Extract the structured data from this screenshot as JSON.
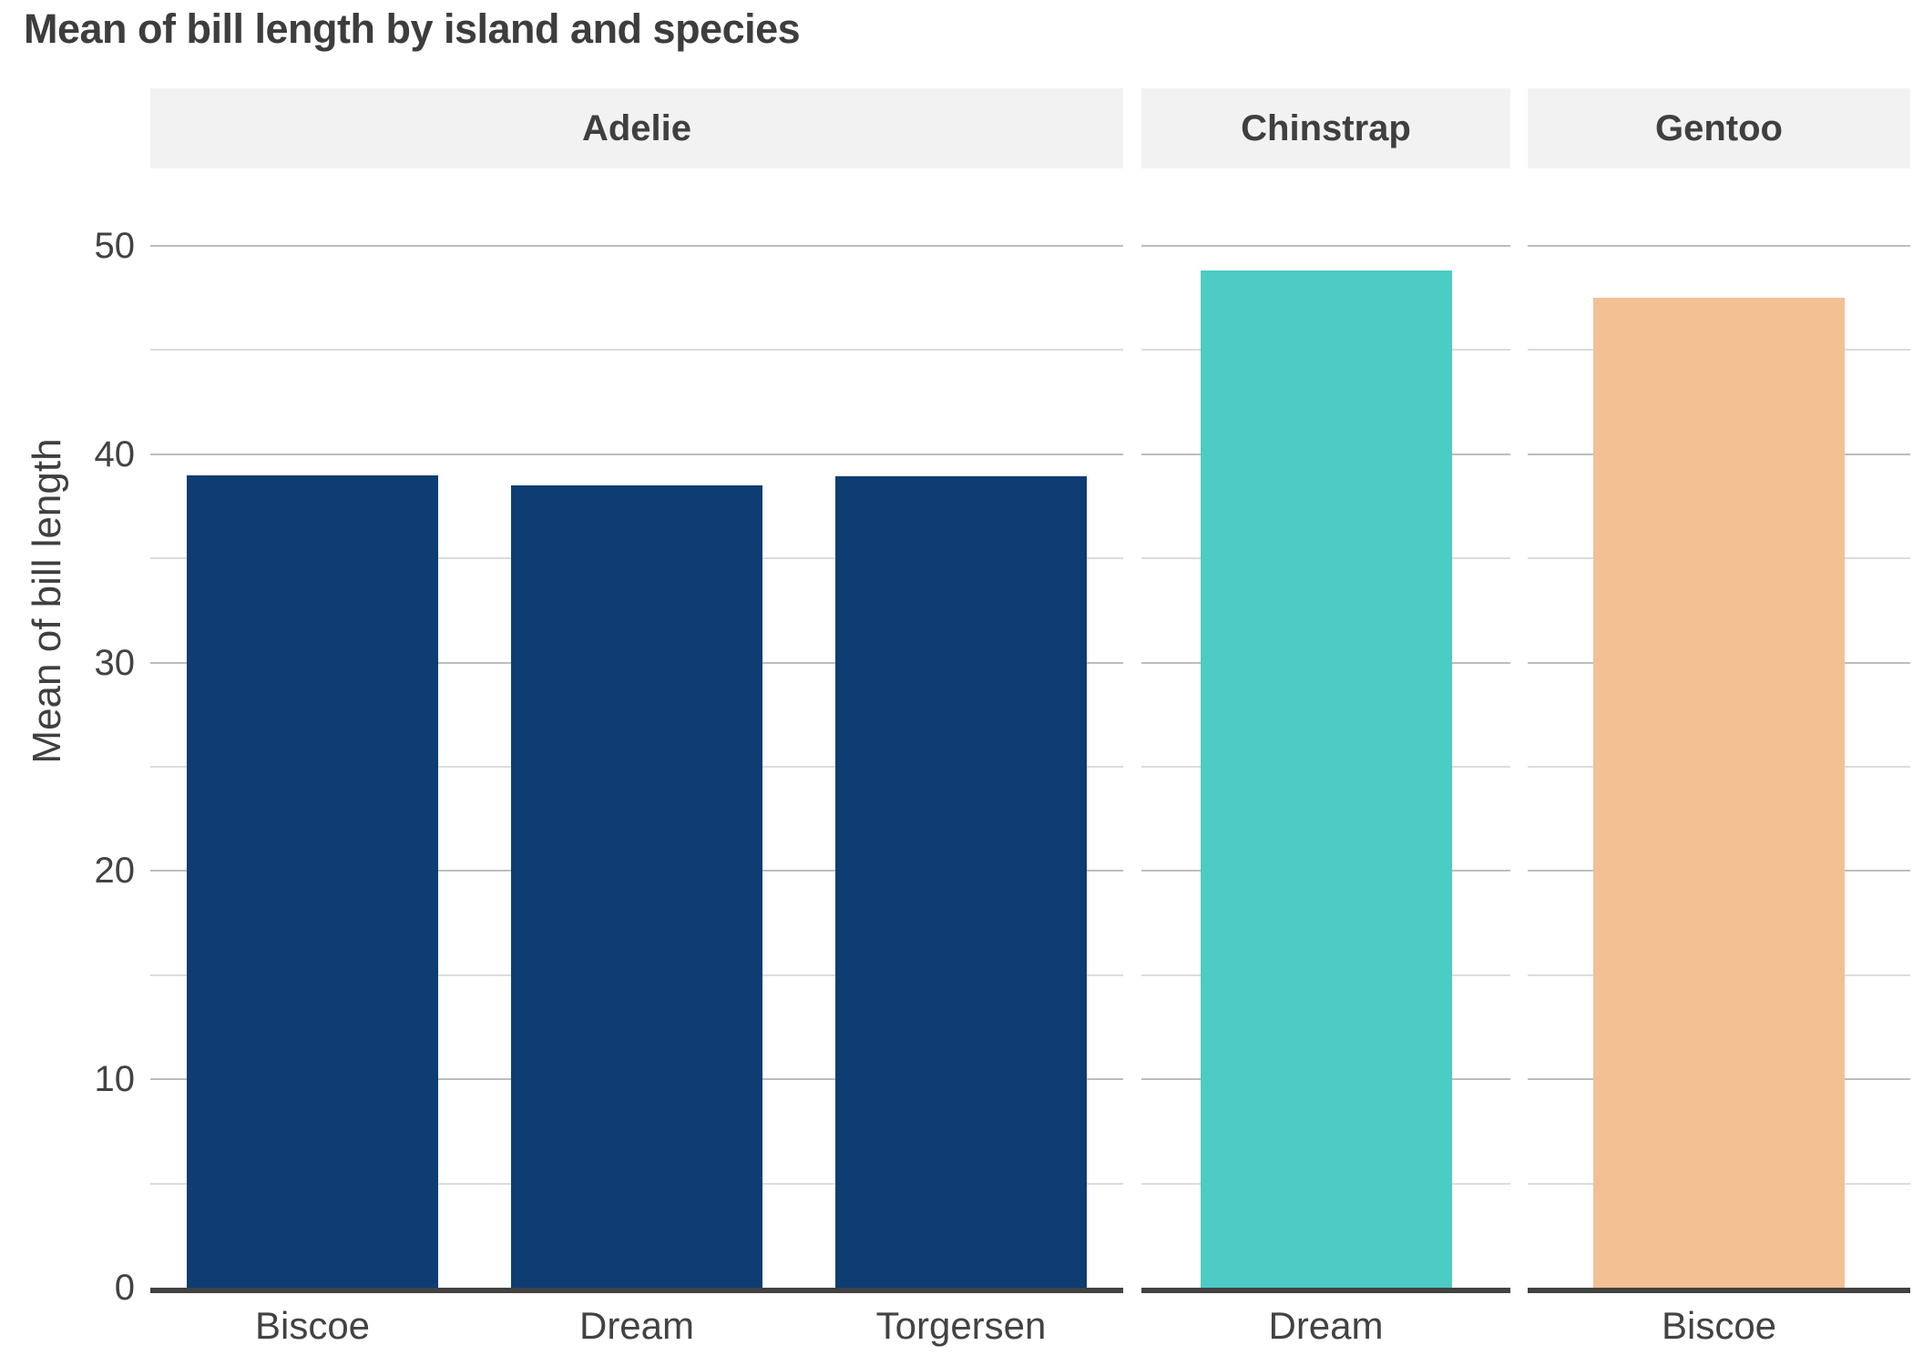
{
  "title": "Mean of bill length by island and species",
  "y_axis": {
    "label": "Mean of bill length",
    "ticks": [
      "0",
      "10",
      "20",
      "30",
      "40",
      "50"
    ]
  },
  "colors": {
    "adelie_bar": "#0d3d72",
    "chinstrap_bar": "#4cccc4",
    "gentoo_bar": "#f2c093",
    "strip_background": "#f2f2f2",
    "text": "#3f3f3f",
    "grid_major": "#bdbdbd",
    "grid_minor": "#dcdcdc",
    "axis_line": "#424242",
    "background": "#ffffff"
  },
  "chart_data": {
    "type": "bar",
    "title": "Mean of bill length by island and species",
    "xlabel": "",
    "ylabel": "Mean of bill length",
    "ylim": [
      0,
      53.7
    ],
    "yticks": [
      0,
      10,
      20,
      30,
      40,
      50
    ],
    "minor_yticks": [
      5,
      15,
      25,
      35,
      45
    ],
    "grid": true,
    "legend": false,
    "facet_variable": "species",
    "x_variable": "island",
    "facets": [
      {
        "label": "Adelie",
        "color": "#0d3d72",
        "categories": [
          "Biscoe",
          "Dream",
          "Torgersen"
        ],
        "values": [
          38.98,
          38.5,
          38.95
        ]
      },
      {
        "label": "Chinstrap",
        "color": "#4cccc4",
        "categories": [
          "Dream"
        ],
        "values": [
          48.83
        ]
      },
      {
        "label": "Gentoo",
        "color": "#f2c093",
        "categories": [
          "Biscoe"
        ],
        "values": [
          47.5
        ]
      }
    ]
  }
}
